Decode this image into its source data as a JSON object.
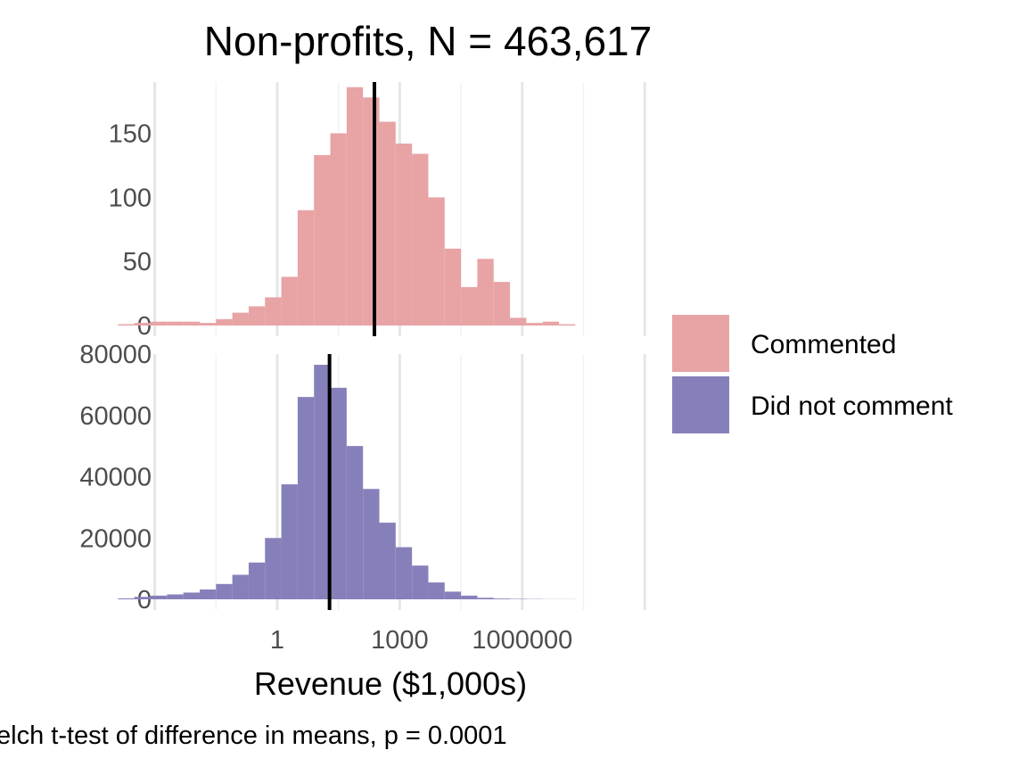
{
  "chart_data": {
    "type": "bar",
    "title": "Non-profits, N = 463,617",
    "xlabel": "Revenue ($1,000s)",
    "caption": "elch t-test of difference in means, p = 0.0001",
    "x_scale": "log10",
    "x_ticks": [
      {
        "value": 0.001,
        "label": ""
      },
      {
        "value": 1,
        "label": "1"
      },
      {
        "value": 1000,
        "label": "1000"
      },
      {
        "value": 1000000,
        "label": "1000000"
      },
      {
        "value": 1000000000,
        "label": ""
      }
    ],
    "legend": {
      "position": "right",
      "entries": [
        {
          "label": "Commented",
          "color": "#E8A3A5"
        },
        {
          "label": "Did not comment",
          "color": "#8680BA"
        }
      ]
    },
    "bin_edges_log10": [
      -3.9,
      -3.5,
      -3.1,
      -2.7,
      -2.3,
      -1.9,
      -1.5,
      -1.1,
      -0.7,
      -0.3,
      0.1,
      0.5,
      0.9,
      1.3,
      1.7,
      2.1,
      2.5,
      2.9,
      3.3,
      3.7,
      4.1,
      4.5,
      4.9,
      5.3,
      5.7,
      6.1,
      6.5,
      6.9,
      7.3
    ],
    "panels": [
      {
        "name": "Commented",
        "color": "#E8A3A5",
        "ylim": [
          0,
          190
        ],
        "y_ticks": [
          0,
          50,
          100,
          150
        ],
        "counts": [
          1,
          2,
          3,
          3,
          3,
          2,
          5,
          10,
          15,
          22,
          38,
          90,
          133,
          150,
          186,
          178,
          159,
          142,
          134,
          100,
          60,
          30,
          52,
          34,
          6,
          2,
          3,
          1
        ],
        "mean_log10": 2.38
      },
      {
        "name": "Did not comment",
        "color": "#8680BA",
        "ylim": [
          0,
          80000
        ],
        "y_ticks": [
          0,
          20000,
          40000,
          60000,
          80000
        ],
        "counts": [
          300,
          800,
          1200,
          1600,
          2200,
          3200,
          5000,
          8000,
          12000,
          20000,
          37500,
          66000,
          76500,
          69000,
          50000,
          36000,
          25000,
          17000,
          11000,
          5500,
          2500,
          1200,
          500,
          250,
          150,
          100,
          50,
          50
        ],
        "mean_log10": 1.28
      }
    ]
  }
}
